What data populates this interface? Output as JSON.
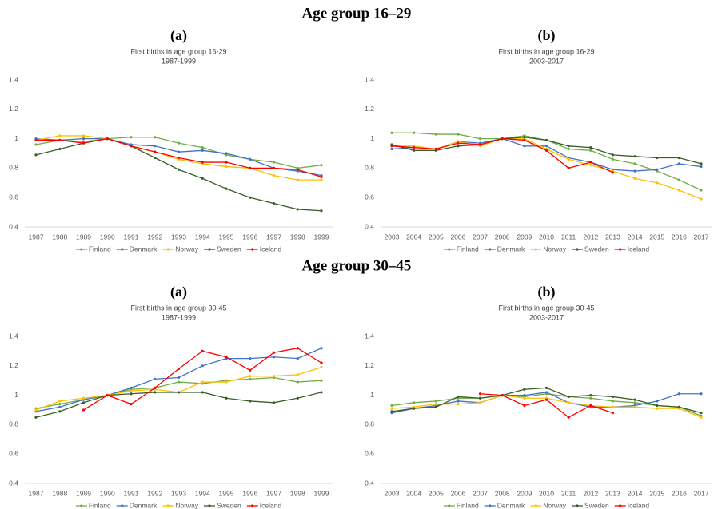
{
  "sections": [
    {
      "title": "Age group 16–29"
    },
    {
      "title": "Age group 30–45"
    }
  ],
  "chart_data": [
    {
      "type": "line",
      "panel_label": "(a)",
      "title": "First births in age group 16-29",
      "subtitle": "1987-1999",
      "categories": [
        "1987",
        "1988",
        "1989",
        "1990",
        "1991",
        "1992",
        "1993",
        "1994",
        "1995",
        "1996",
        "1997",
        "1998",
        "1999"
      ],
      "ylim": [
        0.4,
        1.4
      ],
      "yticks": [
        0.4,
        0.6,
        0.8,
        1,
        1.2,
        1.4
      ],
      "grid": false,
      "legend": "bottom",
      "series": [
        {
          "name": "Finland",
          "color": "#70ad47",
          "values": [
            0.96,
            0.99,
            0.98,
            1.0,
            1.01,
            1.01,
            0.97,
            0.94,
            0.89,
            0.86,
            0.84,
            0.8,
            0.82
          ]
        },
        {
          "name": "Denmark",
          "color": "#4472c4",
          "values": [
            1.0,
            0.99,
            1.0,
            1.0,
            0.96,
            0.95,
            0.91,
            0.92,
            0.9,
            0.86,
            0.8,
            0.78,
            0.75
          ]
        },
        {
          "name": "Norway",
          "color": "#ffc000",
          "values": [
            0.99,
            1.02,
            1.02,
            1.0,
            0.95,
            0.91,
            0.86,
            0.83,
            0.81,
            0.8,
            0.75,
            0.72,
            0.72
          ]
        },
        {
          "name": "Sweden",
          "color": "#3a5f24",
          "values": [
            0.89,
            0.93,
            0.97,
            1.0,
            0.95,
            0.87,
            0.79,
            0.73,
            0.66,
            0.6,
            0.56,
            0.52,
            0.51
          ]
        },
        {
          "name": "Iceland",
          "color": "#ff0000",
          "values": [
            0.99,
            0.99,
            0.97,
            1.0,
            0.95,
            0.91,
            0.87,
            0.84,
            0.84,
            0.8,
            0.8,
            0.79,
            0.74
          ]
        }
      ]
    },
    {
      "type": "line",
      "panel_label": "(b)",
      "title": "First births in age group 16-29",
      "subtitle": "2003-2017",
      "categories": [
        "2003",
        "2004",
        "2005",
        "2006",
        "2007",
        "2008",
        "2009",
        "2010",
        "2011",
        "2012",
        "2013",
        "2014",
        "2015",
        "2016",
        "2017"
      ],
      "ylim": [
        0.4,
        1.4
      ],
      "yticks": [
        0.4,
        0.6,
        0.8,
        1,
        1.2,
        1.4
      ],
      "grid": false,
      "legend": "bottom",
      "series": [
        {
          "name": "Finland",
          "color": "#70ad47",
          "values": [
            1.04,
            1.04,
            1.03,
            1.03,
            1.0,
            1.0,
            1.02,
            0.99,
            0.93,
            0.92,
            0.86,
            0.83,
            0.78,
            0.72,
            0.65
          ]
        },
        {
          "name": "Denmark",
          "color": "#4472c4",
          "values": [
            0.93,
            0.94,
            0.93,
            0.98,
            0.97,
            1.0,
            0.95,
            0.95,
            0.87,
            0.84,
            0.79,
            0.78,
            0.79,
            0.83,
            0.81
          ]
        },
        {
          "name": "Norway",
          "color": "#ffc000",
          "values": [
            0.95,
            0.95,
            0.93,
            0.98,
            0.95,
            1.0,
            1.0,
            0.93,
            0.86,
            0.82,
            0.78,
            0.73,
            0.7,
            0.65,
            0.59
          ]
        },
        {
          "name": "Sweden",
          "color": "#3a5f24",
          "values": [
            0.96,
            0.92,
            0.92,
            0.95,
            0.96,
            1.0,
            1.01,
            0.99,
            0.95,
            0.94,
            0.89,
            0.88,
            0.87,
            0.87,
            0.83
          ]
        },
        {
          "name": "Iceland",
          "color": "#ff0000",
          "values": [
            0.95,
            0.94,
            0.93,
            0.97,
            0.96,
            1.0,
            0.99,
            0.92,
            0.8,
            0.84,
            0.77,
            null,
            null,
            null,
            null
          ]
        }
      ]
    },
    {
      "type": "line",
      "panel_label": "(a)",
      "title": "First births in age group 30-45",
      "subtitle": "1987-1999",
      "categories": [
        "1987",
        "1988",
        "1989",
        "1990",
        "1991",
        "1992",
        "1993",
        "1994",
        "1995",
        "1996",
        "1997",
        "1998",
        "1999"
      ],
      "ylim": [
        0.4,
        1.4
      ],
      "yticks": [
        0.4,
        0.6,
        0.8,
        1,
        1.2,
        1.4
      ],
      "grid": false,
      "legend": "bottom",
      "series": [
        {
          "name": "Finland",
          "color": "#70ad47",
          "values": [
            0.91,
            0.94,
            0.97,
            1.0,
            1.04,
            1.05,
            1.09,
            1.08,
            1.1,
            1.11,
            1.12,
            1.09,
            1.1
          ]
        },
        {
          "name": "Denmark",
          "color": "#4472c4",
          "values": [
            0.89,
            0.92,
            0.97,
            1.0,
            1.05,
            1.11,
            1.12,
            1.2,
            1.25,
            1.25,
            1.26,
            1.25,
            1.32
          ]
        },
        {
          "name": "Norway",
          "color": "#ffc000",
          "values": [
            0.9,
            0.96,
            0.98,
            1.0,
            1.03,
            1.04,
            1.02,
            1.09,
            1.09,
            1.13,
            1.13,
            1.14,
            1.19
          ]
        },
        {
          "name": "Sweden",
          "color": "#3a5f24",
          "values": [
            0.85,
            0.89,
            0.95,
            1.0,
            1.01,
            1.02,
            1.02,
            1.02,
            0.98,
            0.96,
            0.95,
            0.98,
            1.02
          ]
        },
        {
          "name": "Iceland",
          "color": "#ff0000",
          "values": [
            null,
            null,
            0.9,
            1.0,
            0.94,
            1.05,
            1.18,
            1.3,
            1.26,
            1.17,
            1.29,
            1.32,
            1.22
          ]
        }
      ]
    },
    {
      "type": "line",
      "panel_label": "(b)",
      "title": "First births in age group 30-45",
      "subtitle": "2003-2017",
      "categories": [
        "2003",
        "2004",
        "2005",
        "2006",
        "2007",
        "2008",
        "2009",
        "2010",
        "2011",
        "2012",
        "2013",
        "2014",
        "2015",
        "2016",
        "2017"
      ],
      "ylim": [
        0.4,
        1.4
      ],
      "yticks": [
        0.4,
        0.6,
        0.8,
        1,
        1.2,
        1.4
      ],
      "grid": false,
      "legend": "bottom",
      "series": [
        {
          "name": "Finland",
          "color": "#70ad47",
          "values": [
            0.93,
            0.95,
            0.96,
            0.98,
            0.98,
            1.0,
            0.99,
            1.01,
            0.99,
            0.98,
            0.96,
            0.95,
            0.93,
            0.92,
            0.86
          ]
        },
        {
          "name": "Denmark",
          "color": "#4472c4",
          "values": [
            0.88,
            0.91,
            0.93,
            0.96,
            0.95,
            1.0,
            1.0,
            1.02,
            0.95,
            0.92,
            0.92,
            0.93,
            0.96,
            1.01,
            1.01
          ]
        },
        {
          "name": "Norway",
          "color": "#ffc000",
          "values": [
            0.91,
            0.92,
            0.94,
            0.94,
            0.95,
            1.0,
            0.98,
            0.98,
            0.95,
            0.93,
            0.92,
            0.92,
            0.91,
            0.91,
            0.85
          ]
        },
        {
          "name": "Sweden",
          "color": "#3a5f24",
          "values": [
            0.89,
            0.91,
            0.92,
            0.99,
            0.98,
            1.0,
            1.04,
            1.05,
            0.99,
            1.0,
            0.99,
            0.97,
            0.93,
            0.92,
            0.88
          ]
        },
        {
          "name": "Iceland",
          "color": "#ff0000",
          "values": [
            null,
            null,
            null,
            null,
            1.01,
            1.0,
            0.93,
            0.97,
            0.85,
            0.93,
            0.88,
            null,
            null,
            null,
            null
          ]
        }
      ]
    }
  ]
}
